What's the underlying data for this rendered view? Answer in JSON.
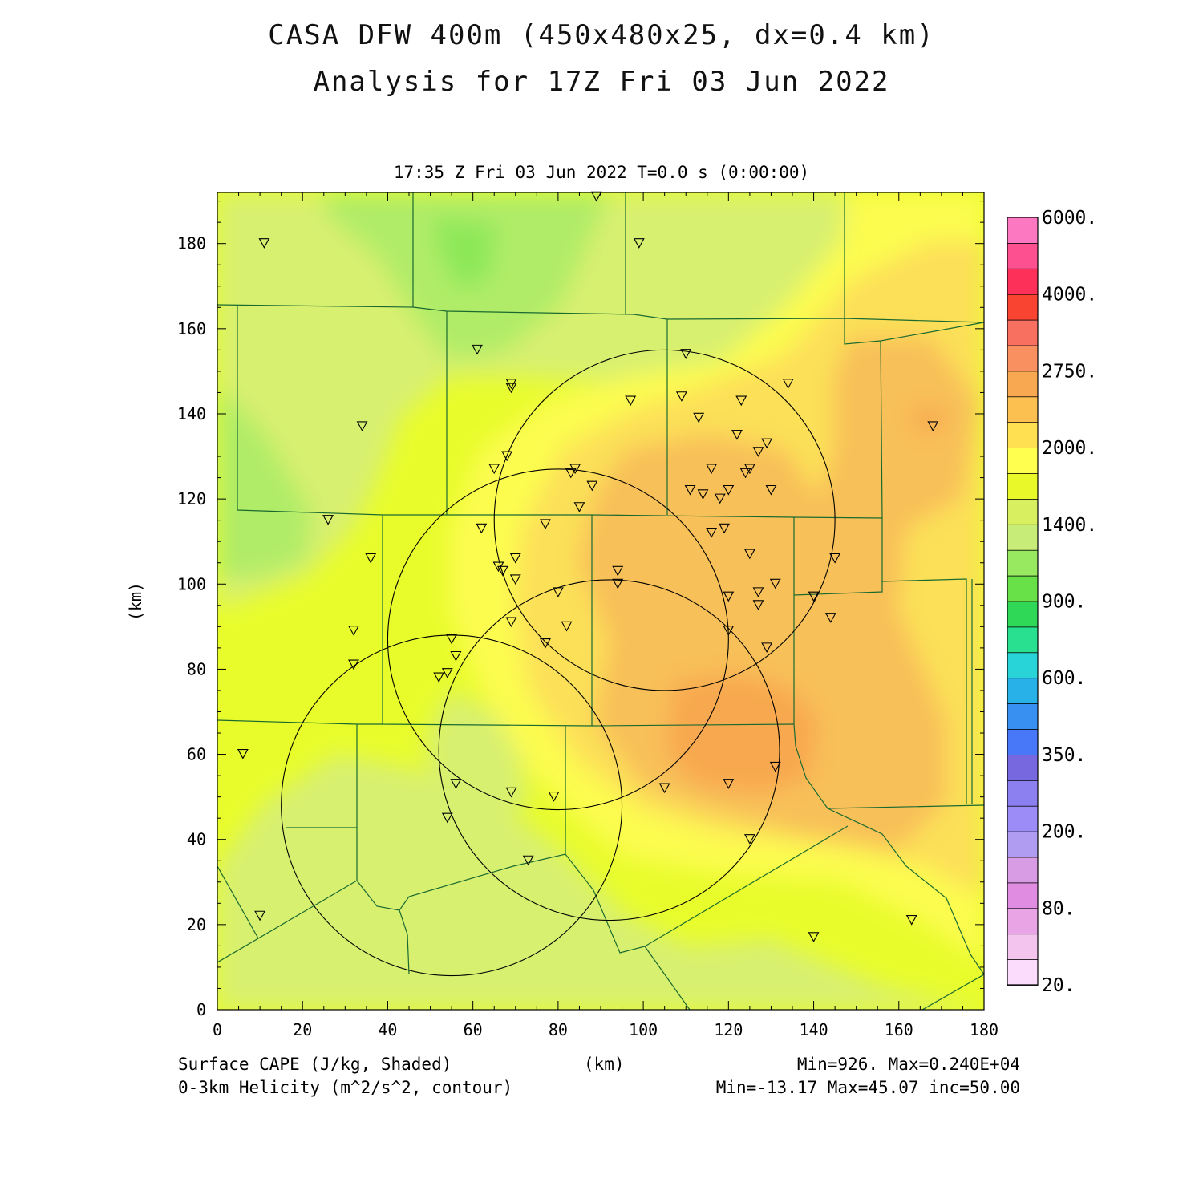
{
  "title_line1": "CASA DFW 400m (450x480x25, dx=0.4 km)",
  "title_line2": "Analysis for 17Z Fri 03 Jun 2022",
  "subtitle": "17:35 Z Fri 03 Jun 2022   T=0.0 s (0:00:00)",
  "ylabel": "(km)",
  "xlabel": "(km)",
  "footer": {
    "field1": "Surface CAPE (J/kg, Shaded)",
    "field2": "0-3km Helicity (m^2/s^2, contour)",
    "range1": "Min=926. Max=0.240E+04",
    "range2": "Min=-13.17 Max=45.07 inc=50.00"
  },
  "axes": {
    "xlim": [
      0,
      180
    ],
    "ylim": [
      0,
      192
    ],
    "xticks": [
      "0",
      "20",
      "40",
      "60",
      "80",
      "100",
      "120",
      "140",
      "160",
      "180"
    ],
    "yticks": [
      "0",
      "20",
      "40",
      "60",
      "80",
      "100",
      "120",
      "140",
      "160",
      "180"
    ]
  },
  "colorbar": {
    "colors": [
      "#fcdcfc",
      "#f2c4ee",
      "#e8a4e4",
      "#e08ce0",
      "#d89ce4",
      "#b09cf0",
      "#9c8cf8",
      "#8c80f0",
      "#7868e0",
      "#4878f8",
      "#3890f0",
      "#28b0e8",
      "#28d4d8",
      "#28e090",
      "#30d858",
      "#68e048",
      "#98e860",
      "#c8ec78",
      "#d8f060",
      "#e8f828",
      "#ffff50",
      "#ffe050",
      "#fcc050",
      "#f8a850",
      "#f89060",
      "#f87060",
      "#f84430",
      "#fc3058",
      "#fc5090",
      "#fc78c0"
    ],
    "labels": [
      "20.",
      "80.",
      "200.",
      "350.",
      "600.",
      "900.",
      "1400.",
      "2000.",
      "2750.",
      "4000.",
      "6000."
    ]
  },
  "cape_field_colors": {
    "green_dark": "#8ce858",
    "green": "#b0ec68",
    "light_green": "#d8f070",
    "yellow_green": "#e8fc2c",
    "yellow": "#fcfc50",
    "light_orange": "#fce058",
    "orange": "#f8c058",
    "dark_orange": "#f8a850"
  },
  "radar_stations": [
    {
      "x": 105,
      "y": 115,
      "r": 40
    },
    {
      "x": 80,
      "y": 87,
      "r": 40
    },
    {
      "x": 92,
      "y": 61,
      "r": 40
    },
    {
      "x": 55,
      "y": 48,
      "r": 40
    }
  ],
  "station_markers": [
    [
      11,
      180
    ],
    [
      99,
      180
    ],
    [
      89,
      191
    ],
    [
      61,
      155
    ],
    [
      69,
      147
    ],
    [
      69,
      146
    ],
    [
      34,
      137
    ],
    [
      110,
      154
    ],
    [
      134,
      147
    ],
    [
      109,
      144
    ],
    [
      97,
      143
    ],
    [
      123,
      143
    ],
    [
      113,
      139
    ],
    [
      168,
      137
    ],
    [
      122,
      135
    ],
    [
      129,
      133
    ],
    [
      127,
      131
    ],
    [
      68,
      130
    ],
    [
      65,
      127
    ],
    [
      84,
      127
    ],
    [
      83,
      126
    ],
    [
      116,
      127
    ],
    [
      125,
      127
    ],
    [
      124,
      126
    ],
    [
      88,
      123
    ],
    [
      111,
      122
    ],
    [
      120,
      122
    ],
    [
      114,
      121
    ],
    [
      118,
      120
    ],
    [
      130,
      122
    ],
    [
      85,
      118
    ],
    [
      26,
      115
    ],
    [
      77,
      114
    ],
    [
      119,
      113
    ],
    [
      62,
      113
    ],
    [
      116,
      112
    ],
    [
      125,
      107
    ],
    [
      36,
      106
    ],
    [
      70,
      106
    ],
    [
      145,
      106
    ],
    [
      66,
      104
    ],
    [
      67,
      103
    ],
    [
      94,
      103
    ],
    [
      70,
      101
    ],
    [
      94,
      100
    ],
    [
      131,
      100
    ],
    [
      80,
      98
    ],
    [
      120,
      97
    ],
    [
      127,
      98
    ],
    [
      140,
      97
    ],
    [
      127,
      95
    ],
    [
      69,
      91
    ],
    [
      144,
      92
    ],
    [
      32,
      89
    ],
    [
      82,
      90
    ],
    [
      120,
      89
    ],
    [
      55,
      87
    ],
    [
      77,
      86
    ],
    [
      129,
      85
    ],
    [
      56,
      83
    ],
    [
      32,
      81
    ],
    [
      54,
      79
    ],
    [
      52,
      78
    ],
    [
      6,
      60
    ],
    [
      131,
      57
    ],
    [
      56,
      53
    ],
    [
      120,
      53
    ],
    [
      105,
      52
    ],
    [
      69,
      51
    ],
    [
      79,
      50
    ],
    [
      54,
      45
    ],
    [
      125,
      40
    ],
    [
      73,
      35
    ],
    [
      10,
      22
    ],
    [
      163,
      21
    ],
    [
      140,
      17
    ]
  ]
}
